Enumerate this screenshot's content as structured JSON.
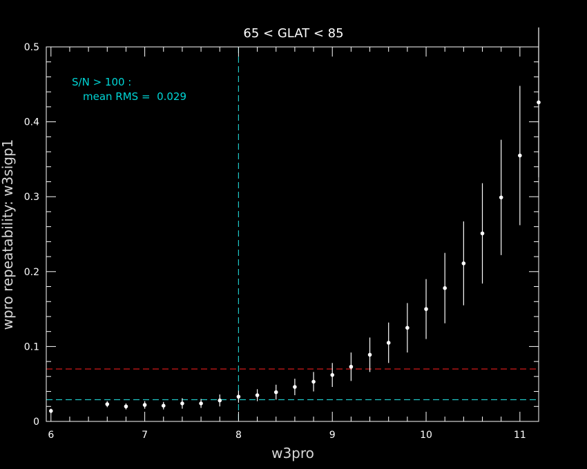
{
  "chart_data": {
    "type": "scatter",
    "title": "65 < GLAT < 85",
    "xlabel": "w3pro",
    "ylabel": "wpro repeatability: w3sigp1",
    "xlim": [
      5.95,
      11.2
    ],
    "ylim": [
      0,
      0.5
    ],
    "x_ticks": [
      6,
      7,
      8,
      9,
      10,
      11
    ],
    "y_ticks": [
      0,
      0.1,
      0.2,
      0.3,
      0.4,
      0.5
    ],
    "x_tick_labels": [
      "6",
      "7",
      "8",
      "9",
      "10",
      "11"
    ],
    "y_tick_labels": [
      "0",
      "0.1",
      "0.2",
      "0.3",
      "0.4",
      "0.5"
    ],
    "grid": false,
    "series": [
      {
        "x": [
          6.0,
          6.6,
          6.8,
          7.0,
          7.2,
          7.4,
          7.6,
          7.8,
          8.0,
          8.2,
          8.4,
          8.6,
          8.8,
          9.0,
          9.2,
          9.4,
          9.6,
          9.8,
          10.0,
          10.2,
          10.4,
          10.6,
          10.8,
          11.0,
          11.2
        ],
        "y": [
          0.014,
          0.023,
          0.02,
          0.022,
          0.021,
          0.024,
          0.024,
          0.028,
          0.033,
          0.035,
          0.039,
          0.046,
          0.053,
          0.062,
          0.073,
          0.089,
          0.105,
          0.125,
          0.15,
          0.178,
          0.211,
          0.251,
          0.299,
          0.355,
          0.426
        ],
        "yerr": [
          0.003,
          0.004,
          0.004,
          0.005,
          0.005,
          0.007,
          0.006,
          0.008,
          0.008,
          0.008,
          0.01,
          0.011,
          0.013,
          0.016,
          0.019,
          0.023,
          0.027,
          0.033,
          0.04,
          0.047,
          0.056,
          0.067,
          0.077,
          0.093,
          0.1
        ],
        "color": "#ffffff"
      }
    ],
    "reference_lines": [
      {
        "orientation": "horizontal",
        "value": 0.07,
        "color": "#d11a1a",
        "style": "dashed"
      },
      {
        "orientation": "horizontal",
        "value": 0.029,
        "color": "#1fc7c7",
        "style": "dashed"
      },
      {
        "orientation": "vertical",
        "value": 8.0,
        "color": "#1fc7c7",
        "style": "dashed"
      }
    ],
    "annotations": [
      "S/N > 100 :",
      "mean RMS =  0.029"
    ]
  }
}
